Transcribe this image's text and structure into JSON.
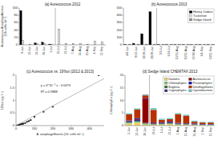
{
  "chart_data": [
    {
      "type": "bar",
      "title": "(a) Aureococcus 2012",
      "ylabel": "Aureococcus Anophagefferens\n(10² cells ml⁻¹)",
      "categories": [
        "6-Jun",
        "12-Jun",
        "19-Jun",
        "26-Jun",
        "5-Jul",
        "25-Jul",
        "31-Jul",
        "7-Aug",
        "14-Aug",
        "20-Aug",
        "4-Sep",
        "11-Sep"
      ],
      "series": [
        {
          "color": "#000000",
          "values": [
            93,
            0,
            5,
            7,
            2,
            0,
            0,
            0,
            0,
            0,
            0,
            0
          ]
        },
        {
          "color": "#e8e8e8",
          "values": [
            12,
            2,
            3,
            4,
            2,
            43,
            3,
            3,
            3,
            2,
            10,
            8
          ]
        },
        {
          "color": "#999999",
          "values": [
            0,
            0,
            0,
            0,
            0,
            0,
            0,
            0,
            0,
            0,
            0,
            0
          ]
        }
      ],
      "ylim": [
        0,
        100
      ],
      "yticks": [
        0,
        20,
        40,
        60,
        80,
        100
      ],
      "vline": 4.5
    },
    {
      "type": "bar",
      "title": "(b) Aureococcus 2013",
      "categories": [
        "4/6-Jun",
        "6/12-Jun",
        "10/16-Jun",
        "20/26-Jun",
        "2/3-Jul",
        "9/16-Jul",
        "10/13-Aug",
        "20/21-Aug",
        "27/28-Aug",
        "3/4-Sep",
        "10/11-Sep"
      ],
      "series": [
        {
          "name": "Honey Cedars",
          "color": "#000000",
          "values": [
            5,
            20,
            150,
            450,
            5,
            3,
            3,
            2,
            2,
            2,
            2
          ]
        },
        {
          "name": "Tuckerton",
          "color": "#e8e8e8",
          "values": [
            0,
            0,
            0,
            0,
            0,
            0,
            0,
            0,
            0,
            0,
            0
          ]
        },
        {
          "name": "Sedge Island",
          "color": "#999999",
          "values": [
            3,
            3,
            3,
            3,
            3,
            3,
            3,
            3,
            3,
            3,
            3
          ]
        }
      ],
      "ylim": [
        0,
        500
      ],
      "yticks": [
        0,
        100,
        200,
        300,
        400,
        500
      ],
      "vline": 3.5,
      "legend": "top-right"
    },
    {
      "type": "scatter",
      "title": "(c) Aureococcus vs. 19'but (2012 & 2013)",
      "xlabel": "A. anophagefferens (10² cells ml⁻¹)",
      "ylabel": "19'but (μg l⁻¹)",
      "series": [
        {
          "type": "scatter",
          "marker": "square",
          "color": "#222222",
          "x": [
            5,
            8,
            10,
            12,
            15,
            20,
            25,
            30,
            35,
            40,
            50,
            60,
            70,
            80,
            100,
            150,
            200,
            450
          ],
          "values": [
            0.0,
            0.0,
            0.01,
            0.02,
            0.03,
            0.04,
            0.06,
            0.07,
            0.06,
            0.08,
            0.1,
            0.15,
            0.18,
            0.22,
            0.35,
            0.55,
            0.75,
            2.0
          ]
        },
        {
          "type": "line",
          "color": "#aaaaaa",
          "x": [
            0,
            480
          ],
          "values": [
            0,
            1.87
          ]
        }
      ],
      "xlim": [
        0,
        480
      ],
      "ylim": [
        0,
        2.0
      ],
      "xticks": [
        0,
        100,
        200,
        300,
        400
      ],
      "yticks": [
        0,
        0.5,
        1,
        1.5,
        2
      ],
      "annotations": [
        "y = 4*10⁻³ x - 0.0474",
        "R² = 0.9888"
      ]
    },
    {
      "type": "bar",
      "stacked": true,
      "title": "(d) Sedge Island CHEMTAX 2013",
      "ylabel": "Chlorophyll a (μg l⁻¹)",
      "categories": [
        "5-Jun",
        "12-Jun",
        "26-Jun",
        "16-Jul",
        "3-Jul",
        "21-Jul",
        "1-Aug",
        "11-Aug",
        "25-Aug",
        "1-Sep",
        "11-Sep"
      ],
      "series": [
        {
          "name": "Diatoms",
          "color": "#f0d060",
          "values": [
            0.8,
            1.2,
            0.4,
            0.3,
            0.4,
            0.6,
            0.3,
            0.3,
            0.2,
            0.15,
            0.15
          ]
        },
        {
          "name": "Chlorophytes",
          "color": "#70c870",
          "values": [
            0.4,
            0.4,
            0.4,
            0.25,
            0.25,
            0.25,
            0.25,
            0.2,
            0.2,
            0.15,
            0.15
          ]
        },
        {
          "name": "Euglena",
          "color": "#307030",
          "values": [
            0.1,
            0.1,
            0.1,
            0.05,
            0.05,
            0.05,
            0.05,
            0.05,
            0.05,
            0.05,
            0.05
          ]
        },
        {
          "name": "Cryptophytes",
          "color": "#303080",
          "values": [
            0.4,
            0.6,
            0.2,
            0.15,
            0.2,
            0.35,
            0.15,
            0.15,
            0.15,
            0.1,
            0.1
          ]
        },
        {
          "name": "Aureococcus",
          "color": "#900000",
          "values": [
            0.1,
            0.3,
            9.5,
            0.3,
            0.2,
            0.1,
            0.1,
            0.1,
            0.1,
            0.05,
            0.05
          ]
        },
        {
          "name": "Prasinophytes",
          "color": "#0000b0",
          "values": [
            0.2,
            0.35,
            0.2,
            0.2,
            0.2,
            0.2,
            0.2,
            0.15,
            0.15,
            0.12,
            0.12
          ]
        },
        {
          "name": "Dinoflagellates",
          "color": "#b83000",
          "values": [
            2.5,
            3.5,
            1.2,
            5.0,
            1.0,
            1.0,
            3.5,
            3.0,
            0.7,
            0.6,
            0.6
          ]
        },
        {
          "name": "Cyanobacteria",
          "color": "#70c8c8",
          "values": [
            0.4,
            0.4,
            0.4,
            0.7,
            0.4,
            0.4,
            0.4,
            0.4,
            0.4,
            0.25,
            0.25
          ]
        }
      ],
      "ylim": [
        0,
        20
      ],
      "yticks": [
        0,
        5,
        10,
        15,
        20
      ],
      "vline": 2.5,
      "legend": "top-right"
    }
  ]
}
